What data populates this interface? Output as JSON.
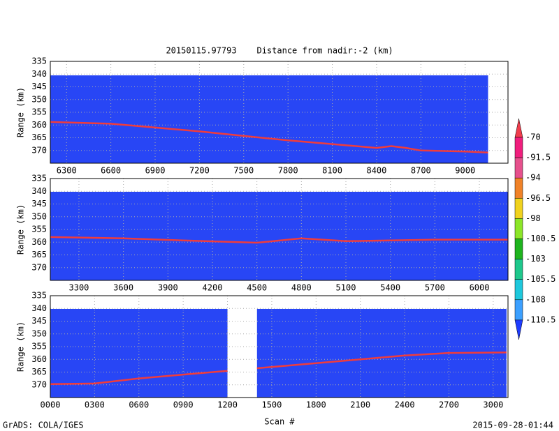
{
  "title": "20150115.97793    Distance from nadir:-2 (km)",
  "x_label": "Scan #",
  "footer_left": "GrADS: COLA/IGES",
  "footer_right": "2015-09-28-01:44",
  "colorbar": {
    "labels": [
      -70,
      -91.5,
      -94,
      -96.5,
      -98,
      -100.5,
      -103,
      -105.5,
      -108,
      -110.5
    ],
    "colors": [
      "#f03c4c",
      "#f01e7d",
      "#e6508c",
      "#f08228",
      "#f0d21e",
      "#8ce628",
      "#1eb41e",
      "#1ec88c",
      "#1ec8dc",
      "#3ca0ff",
      "#1e3cff"
    ]
  },
  "chart_data": [
    {
      "type": "curtain",
      "y_label": "Range (km)",
      "background": "#2846f5",
      "line_color": "#f03c3c",
      "grid": true,
      "xlim": [
        6190,
        9290
      ],
      "xticks": [
        6300,
        6600,
        6900,
        7200,
        7500,
        7800,
        8100,
        8400,
        8700,
        9000
      ],
      "ylim": [
        335,
        375
      ],
      "yticks": [
        335,
        340,
        345,
        350,
        355,
        360,
        365,
        370
      ],
      "coverage": [
        [
          6190,
          9155
        ]
      ],
      "coverage_top": 340.5,
      "surface": {
        "x": [
          6190,
          6600,
          6900,
          7200,
          7500,
          7800,
          8100,
          8400,
          8500,
          8600,
          8700,
          9000,
          9155
        ],
        "y": [
          358.8,
          359.5,
          361,
          362.5,
          364.3,
          366,
          367.5,
          369,
          368.3,
          369,
          370,
          370.4,
          370.8
        ]
      }
    },
    {
      "type": "curtain",
      "y_label": "Range (km)",
      "background": "#2846f5",
      "line_color": "#f03c3c",
      "grid": true,
      "xlim": [
        3107,
        6193
      ],
      "xticks": [
        3300,
        3600,
        3900,
        4200,
        4500,
        4800,
        5100,
        5400,
        5700,
        6000
      ],
      "ylim": [
        335,
        375
      ],
      "yticks": [
        335,
        340,
        345,
        350,
        355,
        360,
        365,
        370
      ],
      "coverage": [
        [
          3107,
          6193
        ]
      ],
      "coverage_top": 340.2,
      "surface": {
        "x": [
          3107,
          3600,
          4000,
          4500,
          4800,
          5100,
          5400,
          5700,
          6000,
          6193
        ],
        "y": [
          358,
          358.5,
          359.3,
          360.2,
          358.5,
          359.6,
          359.3,
          359,
          359,
          359
        ]
      }
    },
    {
      "type": "curtain",
      "y_label": "Range (km)",
      "background": "#2846f5",
      "line_color": "#f03c3c",
      "grid": true,
      "xlim": [
        0,
        3100
      ],
      "xticks": [
        {
          "value": 0,
          "label": "0000"
        },
        {
          "value": 300,
          "label": "0300"
        },
        {
          "value": 600,
          "label": "0600"
        },
        {
          "value": 900,
          "label": "0900"
        },
        {
          "value": 1200,
          "label": "1200"
        },
        {
          "value": 1500,
          "label": "1500"
        },
        {
          "value": 1800,
          "label": "1800"
        },
        {
          "value": 2100,
          "label": "2100"
        },
        {
          "value": 2400,
          "label": "2400"
        },
        {
          "value": 2700,
          "label": "2700"
        },
        {
          "value": 3000,
          "label": "3000"
        }
      ],
      "ylim": [
        335,
        375
      ],
      "yticks": [
        335,
        340,
        345,
        350,
        355,
        360,
        365,
        370
      ],
      "coverage": [
        [
          0,
          1200
        ],
        [
          1400,
          3090
        ]
      ],
      "coverage_top": 340.2,
      "surface": {
        "x": [
          0,
          300,
          600,
          900,
          1200,
          null,
          1400,
          1800,
          2100,
          2400,
          2700,
          3090
        ],
        "y": [
          369.7,
          369.5,
          367.5,
          366,
          364.5,
          null,
          363.5,
          361.5,
          360,
          358.5,
          357.5,
          357.3
        ]
      }
    }
  ]
}
